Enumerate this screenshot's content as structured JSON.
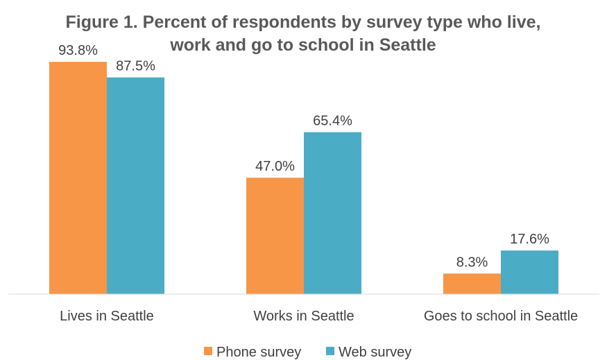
{
  "chart_data": {
    "type": "bar",
    "title_lines": [
      "Figure 1. Percent of respondents by survey type who live,",
      "work and go to school in Seattle"
    ],
    "categories": [
      "Lives in Seattle",
      "Works in Seattle",
      "Goes to school in Seattle"
    ],
    "series": [
      {
        "name": "Phone survey",
        "values": [
          93.8,
          47.0,
          8.3
        ],
        "labels": [
          "93.8%",
          "47.0%",
          "8.3%"
        ],
        "color": "#F79646"
      },
      {
        "name": "Web survey",
        "values": [
          87.5,
          65.4,
          17.6
        ],
        "labels": [
          "87.5%",
          "65.4%",
          "17.6%"
        ],
        "color": "#4BACC6"
      }
    ],
    "ylim": [
      0,
      100
    ],
    "grid": false,
    "legend_position": "bottom",
    "axis_color": "#D9D9D9"
  }
}
